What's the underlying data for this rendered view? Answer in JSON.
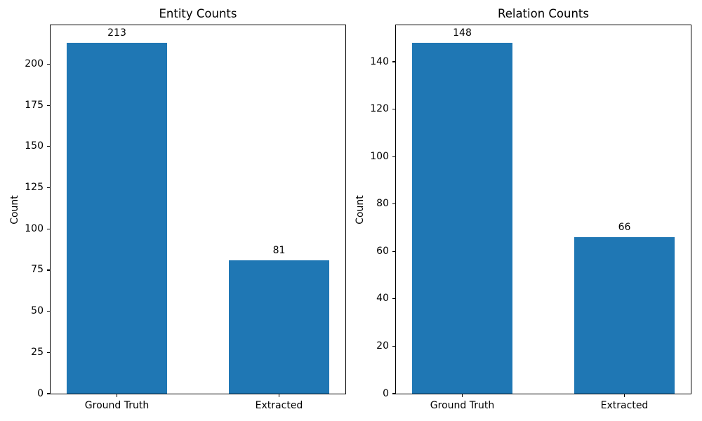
{
  "figure": {
    "background_color": "#ffffff",
    "text_color": "#000000",
    "bar_color": "#1f77b4"
  },
  "chart_data": [
    {
      "type": "bar",
      "title": "Entity Counts",
      "xlabel": "",
      "ylabel": "Count",
      "categories": [
        "Ground Truth",
        "Extracted"
      ],
      "values": [
        213,
        81
      ],
      "bar_labels": [
        "213",
        "81"
      ],
      "ylim": [
        0,
        223.65
      ],
      "yticks": [
        0,
        25,
        50,
        75,
        100,
        125,
        150,
        175,
        200
      ],
      "grid": false,
      "legend_position": "none"
    },
    {
      "type": "bar",
      "title": "Relation Counts",
      "xlabel": "",
      "ylabel": "Count",
      "categories": [
        "Ground Truth",
        "Extracted"
      ],
      "values": [
        148,
        66
      ],
      "bar_labels": [
        "148",
        "66"
      ],
      "ylim": [
        0,
        155.4
      ],
      "yticks": [
        0,
        20,
        40,
        60,
        80,
        100,
        120,
        140
      ],
      "grid": false,
      "legend_position": "none"
    }
  ]
}
